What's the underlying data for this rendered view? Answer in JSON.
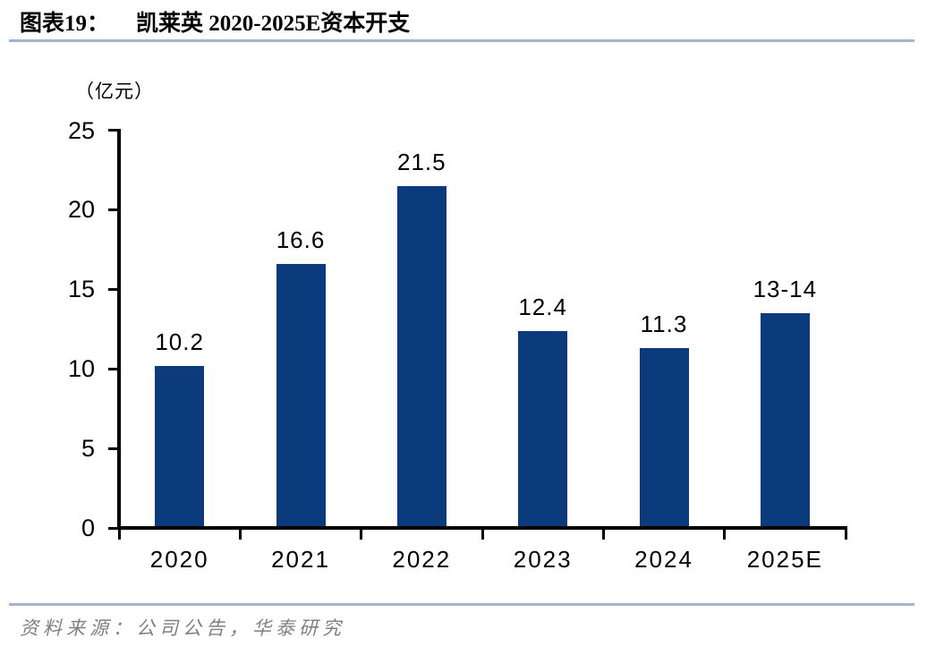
{
  "chart_data": {
    "type": "bar",
    "title_prefix": "图表19：",
    "title": "凯莱英 2020-2025E资本开支",
    "unit_label": "（亿元）",
    "categories": [
      "2020",
      "2021",
      "2022",
      "2023",
      "2024",
      "2025E"
    ],
    "values": [
      10.2,
      16.6,
      21.5,
      12.4,
      11.3,
      13.5
    ],
    "value_labels": [
      "10.2",
      "16.6",
      "21.5",
      "12.4",
      "11.3",
      "13-14"
    ],
    "ylim": [
      0,
      25
    ],
    "yticks": [
      0,
      5,
      10,
      15,
      20,
      25
    ],
    "grid": false,
    "legend": "none",
    "bar_color": "#0b3b7c",
    "axis_color": "#000000",
    "rule_color": "#a3b5ce",
    "text_color": "#000000",
    "source_text_color": "#7f7f7f"
  },
  "footer": {
    "source": "资料来源：公司公告，华泰研究"
  }
}
